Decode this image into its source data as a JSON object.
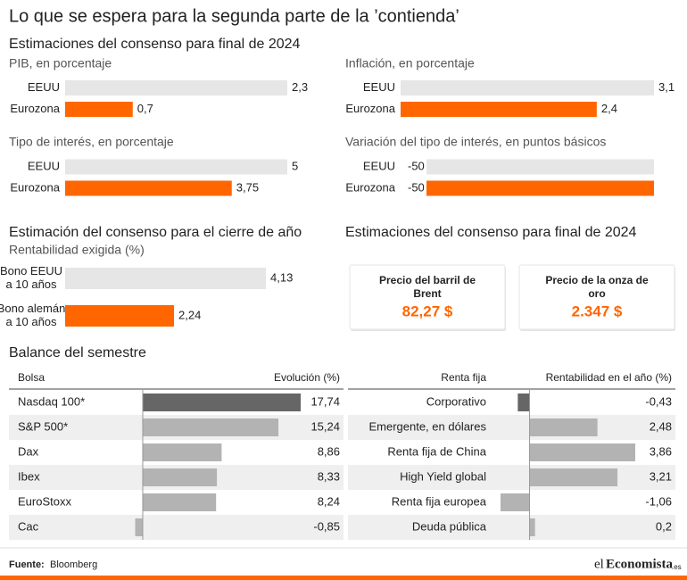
{
  "title": "Lo que se espera para la segunda parte de la ’contienda’",
  "subtitle": "Estimaciones del consenso para final de 2024",
  "sections": [
    "Estimación del consenso para el cierre de año",
    "Balance del semestre"
  ],
  "chart_data": [
    {
      "type": "bar",
      "title": "PIB, en porcentaje",
      "categories": [
        "EEUU",
        "Eurozona"
      ],
      "values": [
        2.3,
        0.7
      ],
      "value_labels": [
        "2,3",
        "0,7"
      ],
      "colors": [
        "#e6e6e6",
        "#ff6600"
      ],
      "xlim": [
        0,
        2.3
      ]
    },
    {
      "type": "bar",
      "title": "Inflación, en porcentaje",
      "categories": [
        "EEUU",
        "Eurozona"
      ],
      "values": [
        3.1,
        2.4
      ],
      "value_labels": [
        "3,1",
        "2,4"
      ],
      "colors": [
        "#e6e6e6",
        "#ff6600"
      ],
      "xlim": [
        0,
        3.1
      ]
    },
    {
      "type": "bar",
      "title": "Tipo de interés, en porcentaje",
      "categories": [
        "EEUU",
        "Eurozona"
      ],
      "values": [
        5,
        3.75
      ],
      "value_labels": [
        "5",
        "3,75"
      ],
      "colors": [
        "#e6e6e6",
        "#ff6600"
      ],
      "xlim": [
        0,
        5
      ]
    },
    {
      "type": "bar",
      "title": "Variación del tipo de interés, en puntos básicos",
      "categories": [
        "EEUU",
        "Eurozona"
      ],
      "values": [
        -50,
        -50
      ],
      "value_labels": [
        "-50",
        "-50"
      ],
      "colors": [
        "#e6e6e6",
        "#ff6600"
      ],
      "xlim": [
        0,
        -50
      ]
    },
    {
      "type": "bar",
      "title": "Rentabilidad exigida (%)",
      "categories": [
        "Bono EEUU a 10 años",
        "Bono alemán a 10 años"
      ],
      "values": [
        4.13,
        2.24
      ],
      "value_labels": [
        "4,13",
        "2,24"
      ],
      "colors": [
        "#e6e6e6",
        "#ff6600"
      ],
      "xlim": [
        0,
        4.13
      ]
    },
    {
      "type": "bar",
      "columns": [
        "Bolsa",
        "Evolución (%)"
      ],
      "categories": [
        "Nasdaq 100*",
        "S&P 500*",
        "Dax",
        "Ibex",
        "EuroStoxx",
        "Cac"
      ],
      "values": [
        17.74,
        15.24,
        8.86,
        8.33,
        8.24,
        -0.85
      ],
      "value_labels": [
        "17,74",
        "15,24",
        "8,86",
        "8,33",
        "8,24",
        "-0,85"
      ],
      "colors": [
        "#666666",
        "#b3b3b3",
        "#b3b3b3",
        "#b3b3b3",
        "#b3b3b3",
        "#b3b3b3"
      ],
      "xlim": [
        -0.85,
        17.74
      ]
    },
    {
      "type": "bar",
      "columns": [
        "Renta fija",
        "Rentabilidad en el año (%)"
      ],
      "categories": [
        "Corporativo",
        "Emergente, en dólares",
        "Renta fija de China",
        "High Yield global",
        "Renta fija europea",
        "Deuda pública"
      ],
      "values": [
        -0.43,
        2.48,
        3.86,
        3.21,
        -1.06,
        0.2
      ],
      "value_labels": [
        "-0,43",
        "2,48",
        "3,86",
        "3,21",
        "-1,06",
        "0,2"
      ],
      "colors": [
        "#666666",
        "#b3b3b3",
        "#b3b3b3",
        "#b3b3b3",
        "#b3b3b3",
        "#b3b3b3"
      ],
      "xlim": [
        -1.06,
        3.86
      ]
    }
  ],
  "cards": {
    "title": "Estimaciones del consenso para final de 2024",
    "items": [
      {
        "label": "Precio del barril de Brent",
        "value": "82,27 $"
      },
      {
        "label": "Precio de la onza de oro",
        "value": "2.347 $"
      }
    ]
  },
  "source": {
    "label": "Fuente:",
    "text": "Bloomberg"
  },
  "logo": {
    "prefix": "el",
    "name": "Economista",
    "suffix": ".es"
  }
}
